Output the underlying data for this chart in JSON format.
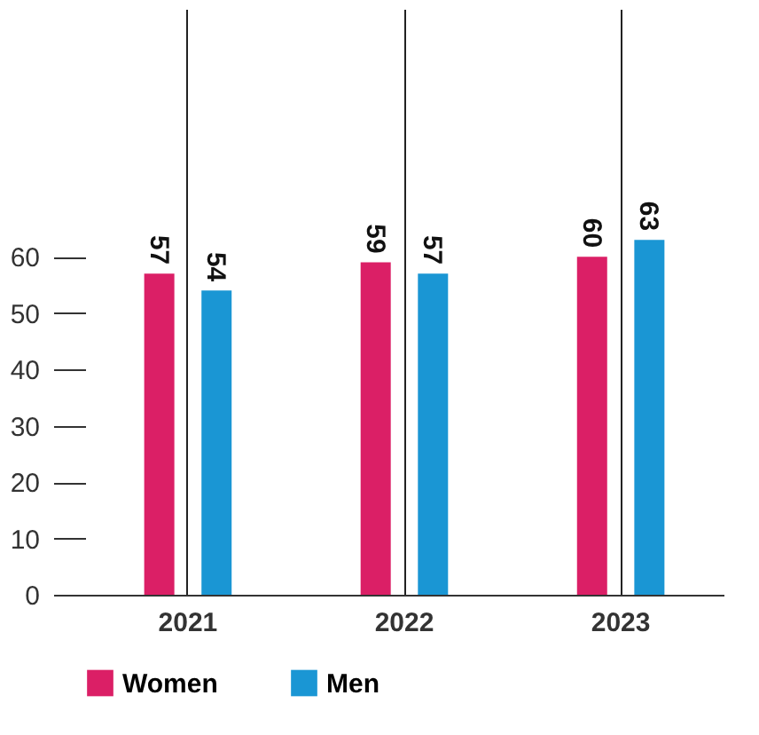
{
  "chart_data": {
    "type": "bar",
    "categories": [
      "2021",
      "2022",
      "2023"
    ],
    "series": [
      {
        "name": "Women",
        "color": "#db1f66",
        "values": [
          57,
          59,
          60
        ]
      },
      {
        "name": "Men",
        "color": "#1a96d4",
        "values": [
          54,
          57,
          63
        ]
      }
    ],
    "ylim": [
      0,
      104
    ],
    "yticks": [
      0,
      10,
      20,
      30,
      40,
      50,
      60
    ],
    "grid": "x",
    "legend": "bottom",
    "data_labels": true
  }
}
